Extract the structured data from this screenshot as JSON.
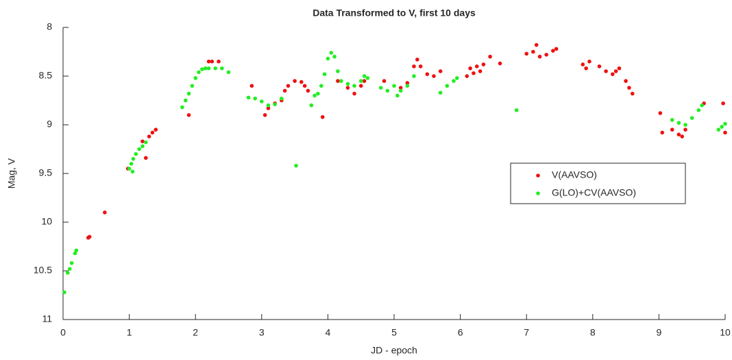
{
  "chart_data": {
    "type": "scatter",
    "title": "Data Transformed to V, first 10 days",
    "xlabel": "JD - epoch",
    "ylabel": "Mag, V",
    "xlim": [
      0,
      10
    ],
    "ylim": [
      8,
      11
    ],
    "y_inverted": true,
    "xticks": [
      0,
      1,
      2,
      3,
      4,
      5,
      6,
      7,
      8,
      9,
      10
    ],
    "yticks": [
      8,
      8.5,
      9,
      9.5,
      10,
      10.5,
      11
    ],
    "legend": "right",
    "grid": false,
    "series": [
      {
        "name": "V(AAVSO)",
        "color": "#ee1111",
        "x": [
          0.98,
          1.2,
          1.3,
          1.35,
          1.4,
          1.25,
          0.38,
          0.4,
          0.63,
          1.9,
          2.2,
          2.25,
          2.35,
          2.85,
          3.05,
          3.1,
          3.2,
          3.3,
          3.35,
          3.4,
          3.5,
          3.6,
          3.65,
          3.7,
          3.92,
          4.15,
          4.3,
          4.4,
          4.5,
          4.55,
          4.85,
          5.1,
          5.2,
          5.3,
          5.35,
          5.4,
          5.5,
          5.6,
          5.7,
          6.1,
          6.15,
          6.2,
          6.25,
          6.3,
          6.35,
          6.45,
          6.6,
          7.0,
          7.1,
          7.15,
          7.2,
          7.3,
          7.4,
          7.45,
          7.85,
          7.9,
          7.95,
          8.1,
          8.2,
          8.3,
          8.35,
          8.4,
          8.5,
          8.55,
          8.6,
          9.02,
          9.05,
          9.2,
          9.3,
          9.35,
          9.4,
          9.68,
          9.97,
          10.0
        ],
        "values": [
          9.45,
          9.17,
          9.12,
          9.08,
          9.05,
          9.34,
          10.16,
          10.15,
          9.9,
          8.9,
          8.35,
          8.35,
          8.35,
          8.6,
          8.9,
          8.83,
          8.78,
          8.75,
          8.65,
          8.6,
          8.55,
          8.56,
          8.6,
          8.65,
          8.92,
          8.55,
          8.62,
          8.68,
          8.6,
          8.55,
          8.55,
          8.62,
          8.57,
          8.4,
          8.33,
          8.4,
          8.48,
          8.5,
          8.45,
          8.5,
          8.42,
          8.47,
          8.4,
          8.45,
          8.38,
          8.3,
          8.37,
          8.27,
          8.25,
          8.18,
          8.3,
          8.28,
          8.24,
          8.22,
          8.38,
          8.42,
          8.35,
          8.4,
          8.45,
          8.48,
          8.45,
          8.42,
          8.55,
          8.62,
          8.68,
          8.88,
          9.08,
          9.05,
          9.1,
          9.12,
          9.05,
          8.78,
          8.78,
          9.08
        ]
      },
      {
        "name": "G(LO)+CV(AAVSO)",
        "color": "#22ee22",
        "x": [
          0.02,
          0.07,
          0.1,
          0.13,
          0.18,
          0.2,
          1.0,
          1.03,
          1.06,
          1.1,
          1.15,
          1.2,
          1.25,
          1.05,
          1.8,
          1.85,
          1.9,
          1.95,
          2.0,
          2.05,
          2.1,
          2.15,
          2.2,
          2.3,
          2.4,
          2.5,
          2.8,
          2.9,
          3.0,
          3.1,
          3.2,
          3.3,
          3.52,
          3.75,
          3.8,
          3.85,
          3.9,
          3.95,
          4.0,
          4.05,
          4.1,
          4.15,
          4.2,
          4.3,
          4.4,
          4.5,
          4.55,
          4.6,
          4.8,
          4.9,
          5.0,
          5.05,
          5.1,
          5.2,
          5.3,
          5.7,
          5.8,
          5.9,
          5.95,
          6.85,
          9.2,
          9.3,
          9.4,
          9.5,
          9.6,
          9.65,
          9.9,
          9.95,
          10.0
        ],
        "values": [
          10.72,
          10.52,
          10.48,
          10.42,
          10.32,
          10.29,
          9.45,
          9.4,
          9.35,
          9.3,
          9.25,
          9.22,
          9.18,
          9.48,
          8.82,
          8.75,
          8.68,
          8.6,
          8.52,
          8.46,
          8.43,
          8.42,
          8.42,
          8.42,
          8.42,
          8.46,
          8.72,
          8.73,
          8.76,
          8.8,
          8.79,
          8.73,
          9.42,
          8.8,
          8.7,
          8.68,
          8.6,
          8.48,
          8.32,
          8.26,
          8.3,
          8.45,
          8.55,
          8.58,
          8.6,
          8.55,
          8.5,
          8.52,
          8.62,
          8.65,
          8.6,
          8.7,
          8.65,
          8.6,
          8.5,
          8.67,
          8.6,
          8.55,
          8.52,
          8.85,
          8.95,
          8.98,
          9.0,
          8.93,
          8.85,
          8.8,
          9.05,
          9.02,
          8.99
        ]
      }
    ]
  }
}
